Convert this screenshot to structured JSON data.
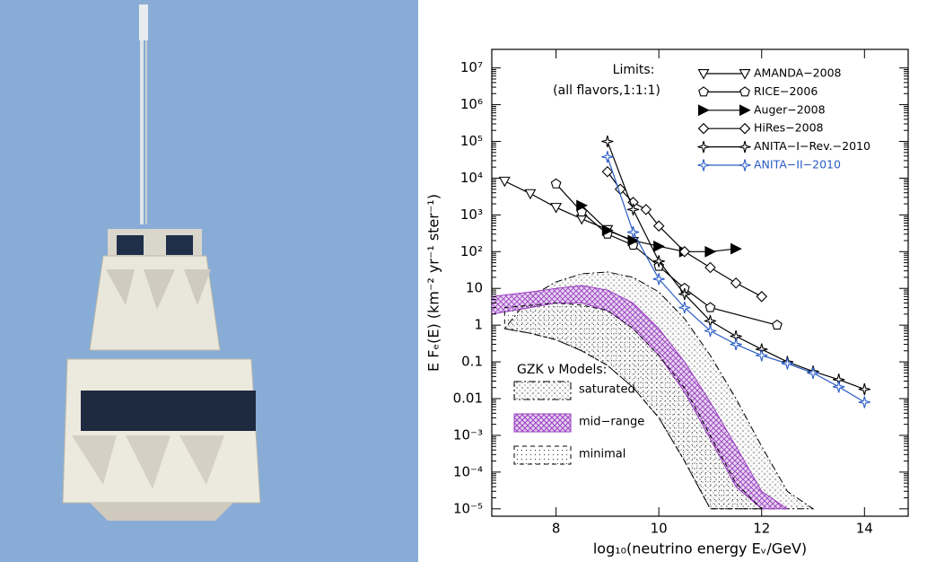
{
  "chart_data": {
    "type": "line",
    "x_label": "log₁₀(neutrino energy Eᵥ/GeV)",
    "y_label": "E Fₑ(E)  (km⁻² yr⁻¹ ster⁻¹)",
    "xlim": [
      6.75,
      14.85
    ],
    "xticks": [
      8,
      10,
      12,
      14
    ],
    "ylim": [
      6.3e-06,
      32000000.0
    ],
    "log_y": true,
    "yticks": [
      {
        "value": 10000000,
        "label": "10⁷"
      },
      {
        "value": 1000000,
        "label": "10⁶"
      },
      {
        "value": 100000,
        "label": "10⁵"
      },
      {
        "value": 10000,
        "label": "10⁴"
      },
      {
        "value": 1000,
        "label": "10³"
      },
      {
        "value": 100,
        "label": "10²"
      },
      10,
      1,
      0.1,
      0.01,
      {
        "value": 0.001,
        "label": "10⁻³"
      },
      {
        "value": 0.0001,
        "label": "10⁻⁴"
      },
      {
        "value": 1e-05,
        "label": "10⁻⁵"
      }
    ],
    "legend_title": "Limits:",
    "legend_subtitle": "(all flavors,1:1:1)",
    "series": [
      {
        "name": "AMANDA−2008",
        "color": "#000000",
        "marker": "triangle-down",
        "filled": false,
        "x": [
          7,
          7.5,
          8,
          8.5,
          9,
          9.5
        ],
        "values": [
          8300,
          3800,
          1600,
          780,
          400,
          190
        ]
      },
      {
        "name": "RICE−2006",
        "color": "#000000",
        "marker": "pentagon",
        "filled": false,
        "x": [
          8,
          8.5,
          9,
          9.5,
          10,
          10.5,
          11,
          12.3
        ],
        "values": [
          7000,
          1200,
          300,
          150,
          40,
          10,
          3,
          1
        ]
      },
      {
        "name": "Auger−2008",
        "color": "#000000",
        "marker": "triangle-right",
        "filled": true,
        "x": [
          8.5,
          9,
          9.5,
          10,
          10.5,
          11,
          11.5
        ],
        "values": [
          1800,
          380,
          200,
          140,
          100,
          100,
          120
        ]
      },
      {
        "name": "HiRes−2008",
        "color": "#000000",
        "marker": "diamond",
        "filled": false,
        "x": [
          9,
          9.25,
          9.5,
          9.75,
          10,
          10.5,
          11,
          11.5,
          12
        ],
        "values": [
          15000,
          5000,
          2200,
          1400,
          500,
          100,
          37,
          14,
          6
        ]
      },
      {
        "name": "ANITA−I−Rev.−2010",
        "color": "#000000",
        "marker": "star",
        "filled": false,
        "x": [
          9,
          9.5,
          10,
          10.5,
          11,
          11.5,
          12,
          12.5,
          13,
          13.5,
          14
        ],
        "values": [
          100000,
          1400,
          55,
          7,
          1.3,
          0.5,
          0.22,
          0.1,
          0.055,
          0.033,
          0.018
        ]
      },
      {
        "name": "ANITA−II−2010",
        "color": "#2a5cc4",
        "marker": "star",
        "filled": false,
        "x": [
          9,
          9.5,
          10,
          10.5,
          11,
          11.5,
          12,
          12.5,
          13,
          13.5,
          14
        ],
        "values": [
          38000,
          340,
          18,
          3,
          0.7,
          0.3,
          0.15,
          0.09,
          0.05,
          0.021,
          0.008
        ]
      }
    ],
    "bands_title": "GZK ν Models:",
    "bands": [
      {
        "name": "saturated",
        "color": "#000000",
        "pattern": "cross",
        "upper": {
          "x": [
            7.5,
            8,
            8.5,
            9,
            9.5,
            10,
            10.5,
            11,
            11.5,
            12,
            12.5,
            13
          ],
          "y": [
            6,
            15,
            25,
            28,
            20,
            8,
            1.5,
            0.15,
            0.01,
            0.0005,
            3e-05,
            1e-05
          ]
        },
        "lower": {
          "x": [
            7,
            7.5,
            8,
            8.5,
            9,
            9.5,
            10,
            10.5,
            11
          ],
          "y": [
            0.8,
            0.6,
            0.4,
            0.2,
            0.08,
            0.02,
            0.003,
            0.0002,
            1e-05
          ]
        }
      },
      {
        "name": "mid−range",
        "color": "#9a3fc0",
        "pattern": "purple",
        "upper": {
          "x": [
            6.75,
            7.5,
            8,
            8.5,
            9,
            9.5,
            10,
            10.5,
            11,
            11.5,
            12,
            12.5
          ],
          "y": [
            6,
            8,
            10,
            12,
            9,
            4,
            0.8,
            0.1,
            0.008,
            0.0005,
            3e-05,
            1e-05
          ]
        },
        "lower": {
          "x": [
            6.75,
            7.5,
            8,
            8.5,
            9,
            9.5,
            10,
            10.5,
            11,
            11.5,
            12
          ],
          "y": [
            2,
            3,
            4,
            4,
            2.5,
            0.8,
            0.15,
            0.015,
            0.0008,
            4e-05,
            1e-05
          ]
        }
      },
      {
        "name": "minimal",
        "color": "#000000",
        "pattern": "dots",
        "upper": {
          "x": [
            7,
            8,
            8.5,
            9,
            9.5,
            10,
            10.5,
            11,
            11.5,
            12
          ],
          "y": [
            3,
            4,
            3.5,
            2.5,
            0.8,
            0.15,
            0.02,
            0.001,
            5e-05,
            1e-05
          ]
        },
        "lower": {
          "x": [
            7,
            7.5,
            8,
            8.5,
            9,
            9.5,
            10,
            10.5,
            11
          ],
          "y": [
            0.8,
            0.6,
            0.4,
            0.2,
            0.08,
            0.02,
            0.003,
            0.0002,
            1e-05
          ]
        }
      }
    ]
  }
}
